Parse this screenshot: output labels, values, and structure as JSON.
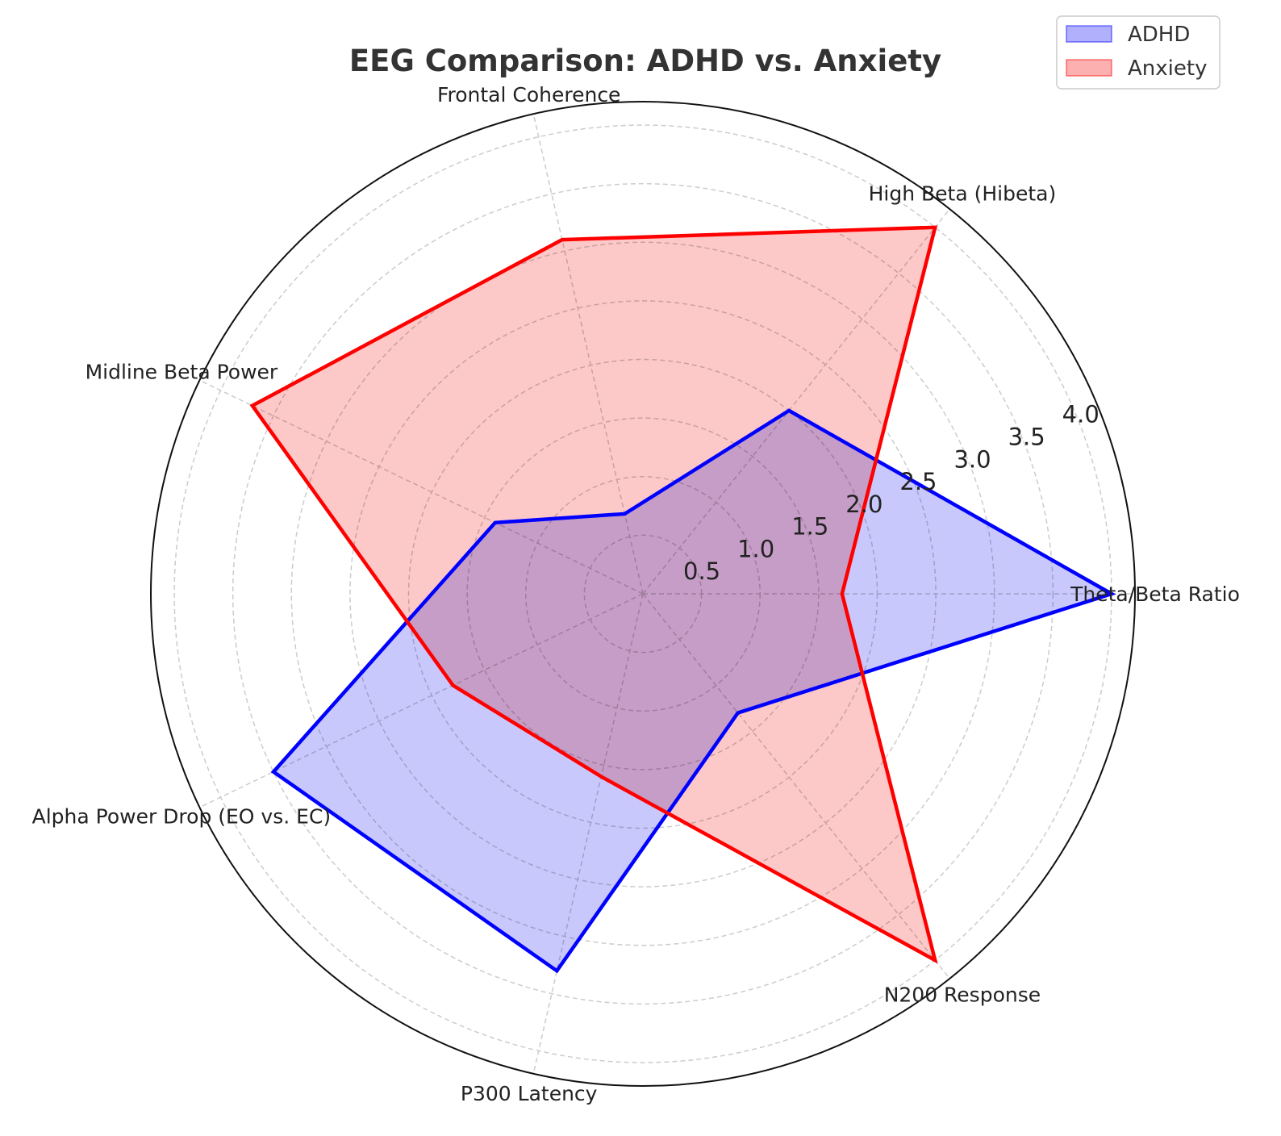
{
  "chart_data": {
    "type": "radar",
    "title": "EEG Comparison: ADHD vs. Anxiety",
    "categories": [
      "Theta/Beta Ratio",
      "High Beta (Hibeta)",
      "Frontal Coherence",
      "Midline Beta Power",
      "Alpha Power Drop (EO vs. EC)",
      "P300 Latency",
      "N200 Response"
    ],
    "series": [
      {
        "name": "ADHD",
        "values": [
          4.0,
          2.0,
          0.7,
          1.4,
          3.5,
          3.3,
          1.3
        ],
        "color": "#0000ff",
        "fill": "#b0b0fc"
      },
      {
        "name": "Anxiety",
        "values": [
          1.7,
          4.0,
          3.1,
          3.7,
          1.8,
          1.6,
          4.0
        ],
        "color": "#ff0000",
        "fill": "#fcb0b0"
      }
    ],
    "radial_ticks": [
      "0.5",
      "1.0",
      "1.5",
      "2.0",
      "2.5",
      "3.0",
      "3.5",
      "4.0"
    ],
    "rlim": [
      0,
      4.2
    ],
    "grid": true,
    "legend_position": "top-right"
  }
}
